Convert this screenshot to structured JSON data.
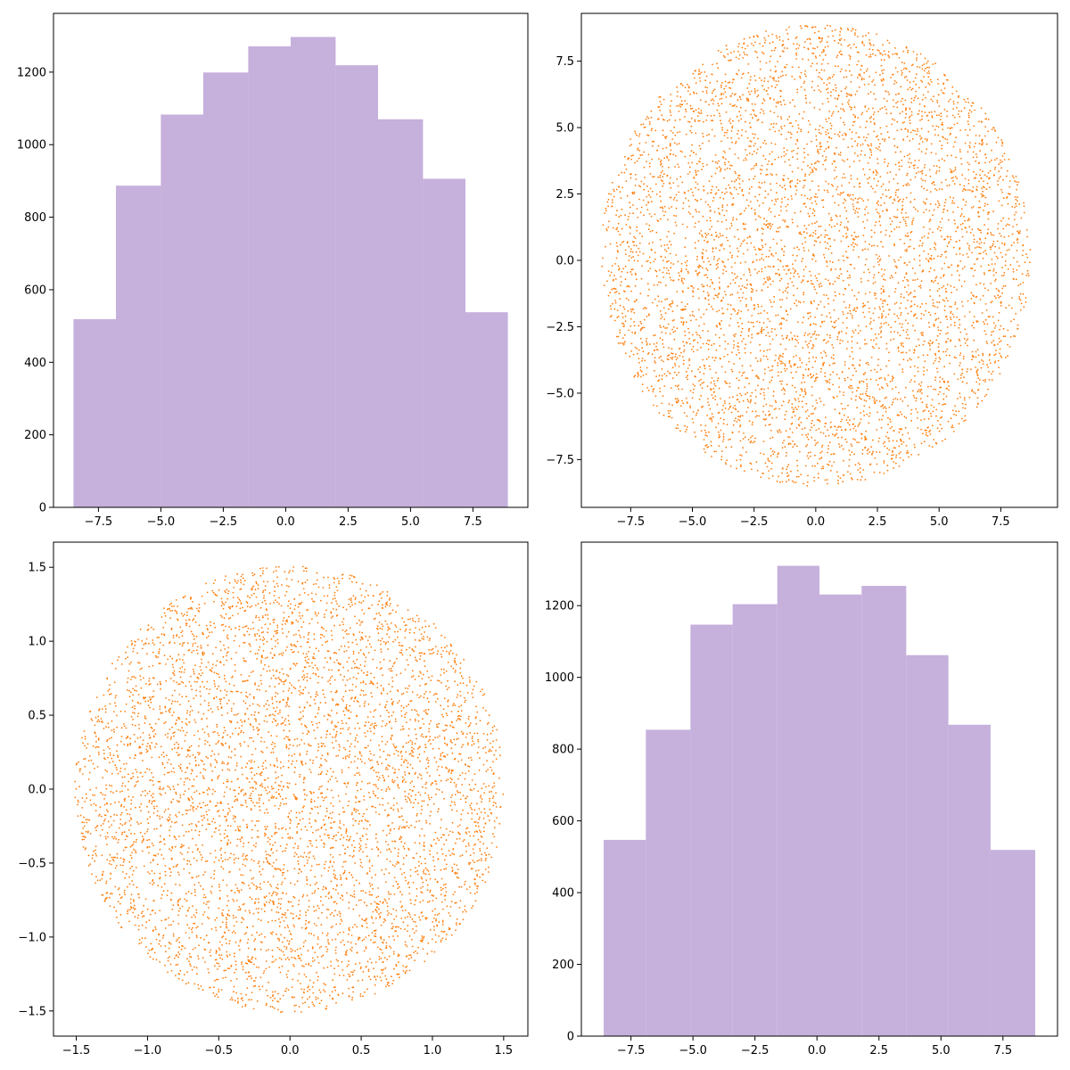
{
  "figure": {
    "layout": "2x2 grid",
    "colors": {
      "hist": "#c6b0dc",
      "scatter": "#ff7f0e",
      "axes": "#000000",
      "background": "#ffffff"
    }
  },
  "chart_data": [
    {
      "panel": "top-left",
      "type": "bar",
      "subtype": "histogram",
      "bin_edges": [
        -8.5,
        -6.8,
        -5.0,
        -3.3,
        -1.5,
        0.2,
        2.0,
        3.7,
        5.5,
        7.2,
        8.9
      ],
      "values": [
        519,
        887,
        1083,
        1199,
        1271,
        1297,
        1219,
        1070,
        906,
        538
      ],
      "xlim": [
        -9.3,
        9.7
      ],
      "ylim": [
        0,
        1362
      ],
      "xticks": [
        -7.5,
        -5.0,
        -2.5,
        0.0,
        2.5,
        5.0,
        7.5
      ],
      "xtick_labels": [
        "−7.5",
        "−5.0",
        "−2.5",
        "0.0",
        "2.5",
        "5.0",
        "7.5"
      ],
      "yticks": [
        0,
        200,
        400,
        600,
        800,
        1000,
        1200
      ],
      "ytick_labels": [
        "0",
        "200",
        "400",
        "600",
        "800",
        "1000",
        "1200"
      ],
      "color": "#c6b0dc",
      "grid": false
    },
    {
      "panel": "top-right",
      "type": "scatter",
      "description_points": "uniform points inside a disc",
      "center": [
        0.0,
        0.2
      ],
      "radius": 8.7,
      "n_points": 5500,
      "xlim": [
        -9.5,
        9.8
      ],
      "ylim": [
        -9.3,
        9.3
      ],
      "xticks": [
        -7.5,
        -5.0,
        -2.5,
        0.0,
        2.5,
        5.0,
        7.5
      ],
      "xtick_labels": [
        "−7.5",
        "−5.0",
        "−2.5",
        "0.0",
        "2.5",
        "5.0",
        "7.5"
      ],
      "yticks": [
        -7.5,
        -5.0,
        -2.5,
        0.0,
        2.5,
        5.0,
        7.5
      ],
      "ytick_labels": [
        "−7.5",
        "−5.0",
        "−2.5",
        "0.0",
        "2.5",
        "5.0",
        "7.5"
      ],
      "color": "#ff7f0e",
      "grid": false
    },
    {
      "panel": "bottom-left",
      "type": "scatter",
      "description_points": "uniform points inside a disc",
      "center": [
        0.0,
        0.0
      ],
      "radius": 1.51,
      "n_points": 5500,
      "xlim": [
        -1.66,
        1.67
      ],
      "ylim": [
        -1.67,
        1.67
      ],
      "xticks": [
        -1.5,
        -1.0,
        -0.5,
        0.0,
        0.5,
        1.0,
        1.5
      ],
      "xtick_labels": [
        "−1.5",
        "−1.0",
        "−0.5",
        "0.0",
        "0.5",
        "1.0",
        "1.5"
      ],
      "yticks": [
        -1.5,
        -1.0,
        -0.5,
        0.0,
        0.5,
        1.0,
        1.5
      ],
      "ytick_labels": [
        "−1.5",
        "−1.0",
        "−0.5",
        "0.0",
        "0.5",
        "1.0",
        "1.5"
      ],
      "color": "#ff7f0e",
      "grid": false
    },
    {
      "panel": "bottom-right",
      "type": "bar",
      "subtype": "histogram",
      "bin_edges": [
        -8.6,
        -6.9,
        -5.1,
        -3.4,
        -1.6,
        0.1,
        1.8,
        3.6,
        5.3,
        7.0,
        8.8
      ],
      "values": [
        547,
        854,
        1147,
        1204,
        1311,
        1231,
        1255,
        1062,
        868,
        519
      ],
      "xlim": [
        -9.5,
        9.7
      ],
      "ylim": [
        0,
        1377
      ],
      "xticks": [
        -7.5,
        -5.0,
        -2.5,
        0.0,
        2.5,
        5.0,
        7.5
      ],
      "xtick_labels": [
        "−7.5",
        "−5.0",
        "−2.5",
        "0.0",
        "2.5",
        "5.0",
        "7.5"
      ],
      "yticks": [
        0,
        200,
        400,
        600,
        800,
        1000,
        1200
      ],
      "ytick_labels": [
        "0",
        "200",
        "400",
        "600",
        "800",
        "1000",
        "1200"
      ],
      "color": "#c6b0dc",
      "grid": false
    }
  ]
}
